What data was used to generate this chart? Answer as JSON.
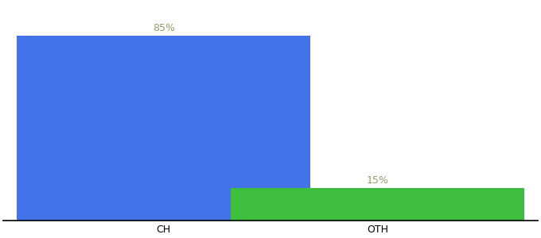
{
  "categories": [
    "CH",
    "OTH"
  ],
  "values": [
    85,
    15
  ],
  "bar_colors": [
    "#4472e8",
    "#3dbe3d"
  ],
  "value_labels": [
    "85%",
    "15%"
  ],
  "label_color": "#999966",
  "background_color": "#ffffff",
  "ylim": [
    0,
    100
  ],
  "bar_width": 0.55,
  "x_positions": [
    0.3,
    0.7
  ],
  "xlim": [
    0.0,
    1.0
  ],
  "figsize": [
    6.8,
    3.0
  ],
  "dpi": 100,
  "tick_fontsize": 9,
  "label_fontsize": 9,
  "spine_color": "#000000"
}
